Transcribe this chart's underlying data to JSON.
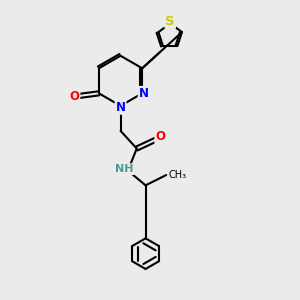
{
  "bg_color": "#ebebeb",
  "bond_color": "#000000",
  "bond_width": 1.5,
  "atom_colors": {
    "N": "#0000ff",
    "O": "#ff0000",
    "S": "#cccc00",
    "H": "#4a9a9a",
    "C": "#000000"
  },
  "font_size": 8.0
}
